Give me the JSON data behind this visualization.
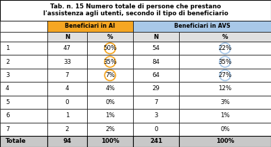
{
  "title_line1": "Tab. n. 15 Numero totale di persone che prestano",
  "title_line2": "l'assistenza agli utenti, secondo il tipo di beneficiario",
  "col_groups": [
    "Beneficiari in AI",
    "Beneficiari in AVS"
  ],
  "col_group_bg": [
    "#F5A623",
    "#A8C8E8"
  ],
  "row_labels": [
    "1",
    "2",
    "3",
    "4",
    "5",
    "6",
    "7",
    "Totale"
  ],
  "data": [
    [
      47,
      "50%",
      54,
      "22%"
    ],
    [
      33,
      "35%",
      84,
      "35%"
    ],
    [
      7,
      "7%",
      64,
      "27%"
    ],
    [
      4,
      "4%",
      29,
      "12%"
    ],
    [
      0,
      "0%",
      7,
      "3%"
    ],
    [
      1,
      "1%",
      3,
      "1%"
    ],
    [
      2,
      "2%",
      0,
      "0%"
    ],
    [
      94,
      "100%",
      241,
      "100%"
    ]
  ],
  "highlight_ai_pct_rows": [
    0,
    1,
    2
  ],
  "highlight_avs_pct_rows": [
    0,
    1,
    2
  ],
  "ai_circle_color": "#F5A623",
  "avs_circle_color": "#A8C8E8",
  "subhdr_bg": "#E0E0E0",
  "totale_bg": "#C8C8C8",
  "title_bg": "#FFFFFF"
}
